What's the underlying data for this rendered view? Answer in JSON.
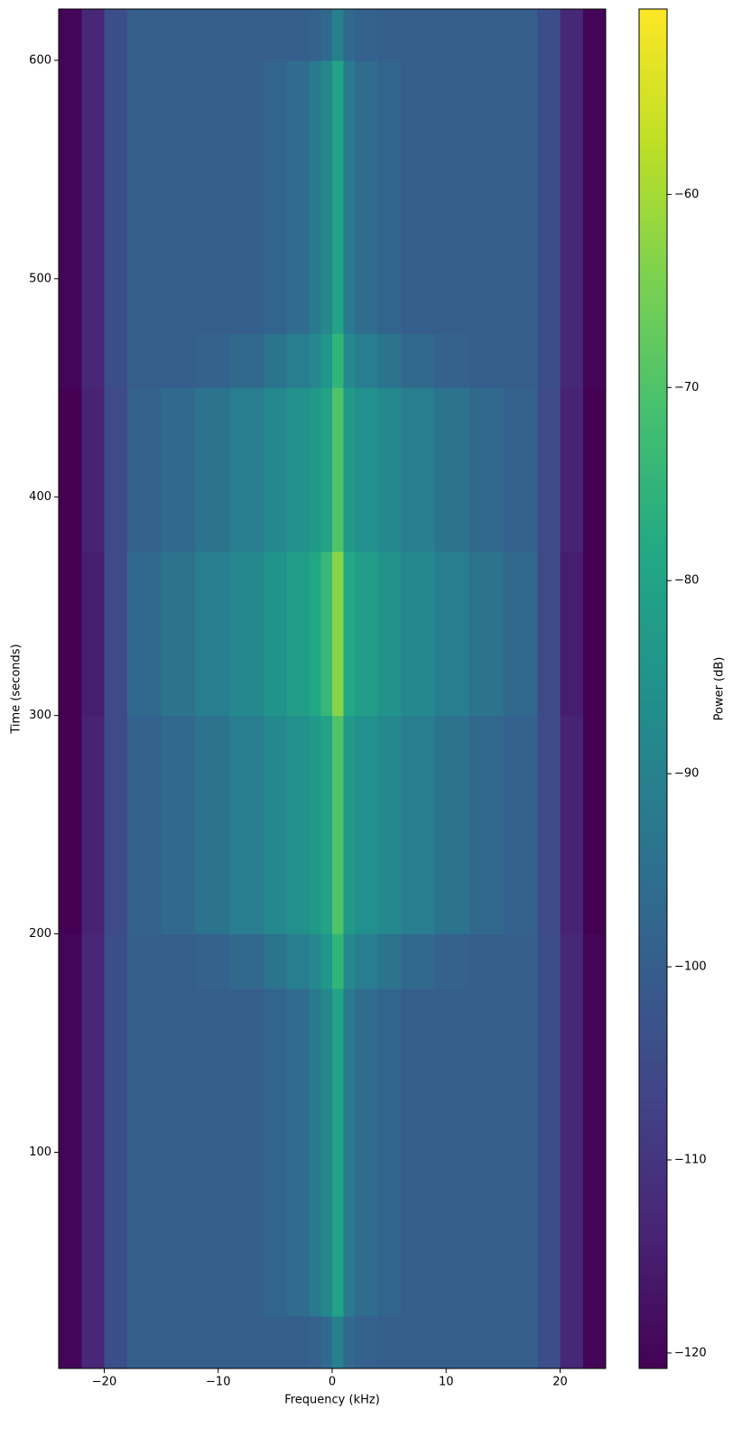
{
  "chart_data": {
    "type": "heatmap",
    "xlabel": "Frequency (kHz)",
    "ylabel": "Time (seconds)",
    "colorbar_label": "Power (dB)",
    "colormap": "viridis",
    "xlim": [
      -24,
      24
    ],
    "ylim": [
      1,
      623.5
    ],
    "clim": [
      -120.8,
      -50.4
    ],
    "xticks": [
      {
        "value": -20,
        "label": "−20"
      },
      {
        "value": -10,
        "label": "−10"
      },
      0,
      10,
      20
    ],
    "yticks": [
      100,
      200,
      300,
      400,
      500,
      600
    ],
    "cticks": [
      {
        "value": -60,
        "label": "−60"
      },
      {
        "value": -70,
        "label": "−70"
      },
      {
        "value": -80,
        "label": "−80"
      },
      {
        "value": -90,
        "label": "−90"
      },
      {
        "value": -100,
        "label": "−100"
      },
      {
        "value": -110,
        "label": "−110"
      },
      {
        "value": -120,
        "label": "−120"
      }
    ],
    "x_edges": [
      -24,
      -22,
      -20,
      -18,
      -15,
      -12,
      -9,
      -6,
      -4,
      -2,
      -1,
      0,
      1,
      2,
      4,
      6,
      9,
      12,
      15,
      18,
      20,
      22,
      24
    ],
    "y_edges": [
      0,
      25,
      50,
      75,
      100,
      125,
      150,
      175,
      200,
      225,
      250,
      275,
      300,
      325,
      350,
      375,
      400,
      425,
      450,
      475,
      500,
      525,
      550,
      575,
      600,
      625
    ],
    "z": [
      [
        -120,
        -113,
        -104,
        -100,
        -100,
        -100,
        -100,
        -100,
        -100,
        -99,
        -97,
        -90,
        -97,
        -99,
        -100,
        -100,
        -100,
        -100,
        -100,
        -104,
        -113,
        -120
      ],
      [
        -120,
        -113,
        -104,
        -100,
        -100,
        -100,
        -100,
        -98,
        -96,
        -92,
        -88,
        -80,
        -92,
        -96,
        -98,
        -100,
        -100,
        -100,
        -100,
        -104,
        -113,
        -120
      ],
      [
        -120,
        -113,
        -104,
        -100,
        -100,
        -100,
        -100,
        -98,
        -96,
        -92,
        -88,
        -80,
        -92,
        -96,
        -98,
        -100,
        -100,
        -100,
        -100,
        -104,
        -113,
        -120
      ],
      [
        -120,
        -113,
        -104,
        -100,
        -100,
        -100,
        -100,
        -98,
        -96,
        -92,
        -88,
        -80,
        -92,
        -96,
        -98,
        -100,
        -100,
        -100,
        -100,
        -104,
        -113,
        -120
      ],
      [
        -120,
        -113,
        -104,
        -100,
        -100,
        -100,
        -100,
        -98,
        -96,
        -92,
        -88,
        -80,
        -92,
        -96,
        -98,
        -100,
        -100,
        -100,
        -100,
        -104,
        -113,
        -120
      ],
      [
        -120,
        -113,
        -104,
        -100,
        -100,
        -100,
        -100,
        -98,
        -96,
        -92,
        -88,
        -80,
        -92,
        -96,
        -98,
        -100,
        -100,
        -100,
        -100,
        -104,
        -113,
        -120
      ],
      [
        -120,
        -113,
        -104,
        -100,
        -100,
        -100,
        -100,
        -98,
        -96,
        -92,
        -88,
        -80,
        -92,
        -96,
        -98,
        -100,
        -100,
        -100,
        -100,
        -104,
        -113,
        -120
      ],
      [
        -120,
        -113,
        -104,
        -100,
        -100,
        -99,
        -97,
        -94,
        -91,
        -88,
        -84,
        -75,
        -88,
        -91,
        -94,
        -97,
        -99,
        -100,
        -100,
        -104,
        -113,
        -120
      ],
      [
        -121,
        -114,
        -105,
        -99,
        -97,
        -94,
        -91,
        -88,
        -86,
        -83,
        -80,
        -70,
        -83,
        -86,
        -88,
        -91,
        -94,
        -97,
        -99,
        -105,
        -114,
        -121
      ],
      [
        -121,
        -114,
        -105,
        -99,
        -97,
        -94,
        -91,
        -88,
        -86,
        -83,
        -80,
        -70,
        -83,
        -86,
        -88,
        -91,
        -94,
        -97,
        -99,
        -105,
        -114,
        -121
      ],
      [
        -121,
        -114,
        -105,
        -99,
        -97,
        -94,
        -91,
        -88,
        -86,
        -83,
        -80,
        -70,
        -83,
        -86,
        -88,
        -91,
        -94,
        -97,
        -99,
        -105,
        -114,
        -121
      ],
      [
        -121,
        -114,
        -105,
        -99,
        -97,
        -94,
        -91,
        -88,
        -86,
        -83,
        -80,
        -70,
        -83,
        -86,
        -88,
        -91,
        -94,
        -97,
        -99,
        -105,
        -114,
        -121
      ],
      [
        -122,
        -115,
        -105,
        -97,
        -94,
        -91,
        -88,
        -85,
        -82,
        -79,
        -74,
        -63,
        -79,
        -82,
        -85,
        -88,
        -91,
        -94,
        -97,
        -105,
        -115,
        -122
      ],
      [
        -122,
        -115,
        -105,
        -97,
        -94,
        -91,
        -88,
        -85,
        -82,
        -79,
        -74,
        -63,
        -79,
        -82,
        -85,
        -88,
        -91,
        -94,
        -97,
        -105,
        -115,
        -122
      ],
      [
        -122,
        -115,
        -105,
        -97,
        -94,
        -91,
        -88,
        -85,
        -82,
        -79,
        -74,
        -63,
        -79,
        -82,
        -85,
        -88,
        -91,
        -94,
        -97,
        -105,
        -115,
        -122
      ],
      [
        -121,
        -114,
        -105,
        -99,
        -97,
        -94,
        -91,
        -88,
        -86,
        -83,
        -80,
        -70,
        -83,
        -86,
        -88,
        -91,
        -94,
        -97,
        -99,
        -105,
        -114,
        -121
      ],
      [
        -121,
        -114,
        -105,
        -99,
        -97,
        -94,
        -91,
        -88,
        -86,
        -83,
        -80,
        -70,
        -83,
        -86,
        -88,
        -91,
        -94,
        -97,
        -99,
        -105,
        -114,
        -121
      ],
      [
        -121,
        -114,
        -105,
        -99,
        -97,
        -94,
        -91,
        -88,
        -86,
        -83,
        -80,
        -70,
        -83,
        -86,
        -88,
        -91,
        -94,
        -97,
        -99,
        -105,
        -114,
        -121
      ],
      [
        -120,
        -113,
        -104,
        -100,
        -100,
        -99,
        -97,
        -94,
        -91,
        -88,
        -84,
        -75,
        -88,
        -91,
        -94,
        -97,
        -99,
        -100,
        -100,
        -104,
        -113,
        -120
      ],
      [
        -120,
        -113,
        -104,
        -100,
        -100,
        -100,
        -100,
        -98,
        -96,
        -92,
        -88,
        -80,
        -92,
        -96,
        -98,
        -100,
        -100,
        -100,
        -100,
        -104,
        -113,
        -120
      ],
      [
        -120,
        -113,
        -104,
        -100,
        -100,
        -100,
        -100,
        -98,
        -96,
        -92,
        -88,
        -80,
        -92,
        -96,
        -98,
        -100,
        -100,
        -100,
        -100,
        -104,
        -113,
        -120
      ],
      [
        -120,
        -113,
        -104,
        -100,
        -100,
        -100,
        -100,
        -98,
        -96,
        -92,
        -88,
        -80,
        -92,
        -96,
        -98,
        -100,
        -100,
        -100,
        -100,
        -104,
        -113,
        -120
      ],
      [
        -120,
        -113,
        -104,
        -100,
        -100,
        -100,
        -100,
        -98,
        -96,
        -92,
        -88,
        -80,
        -92,
        -96,
        -98,
        -100,
        -100,
        -100,
        -100,
        -104,
        -113,
        -120
      ],
      [
        -120,
        -113,
        -104,
        -100,
        -100,
        -100,
        -100,
        -98,
        -96,
        -92,
        -88,
        -80,
        -92,
        -96,
        -98,
        -100,
        -100,
        -100,
        -100,
        -104,
        -113,
        -120
      ],
      [
        -120,
        -113,
        -104,
        -100,
        -100,
        -100,
        -100,
        -100,
        -100,
        -99,
        -97,
        -90,
        -97,
        -99,
        -100,
        -100,
        -100,
        -100,
        -100,
        -104,
        -113,
        -120
      ]
    ]
  }
}
